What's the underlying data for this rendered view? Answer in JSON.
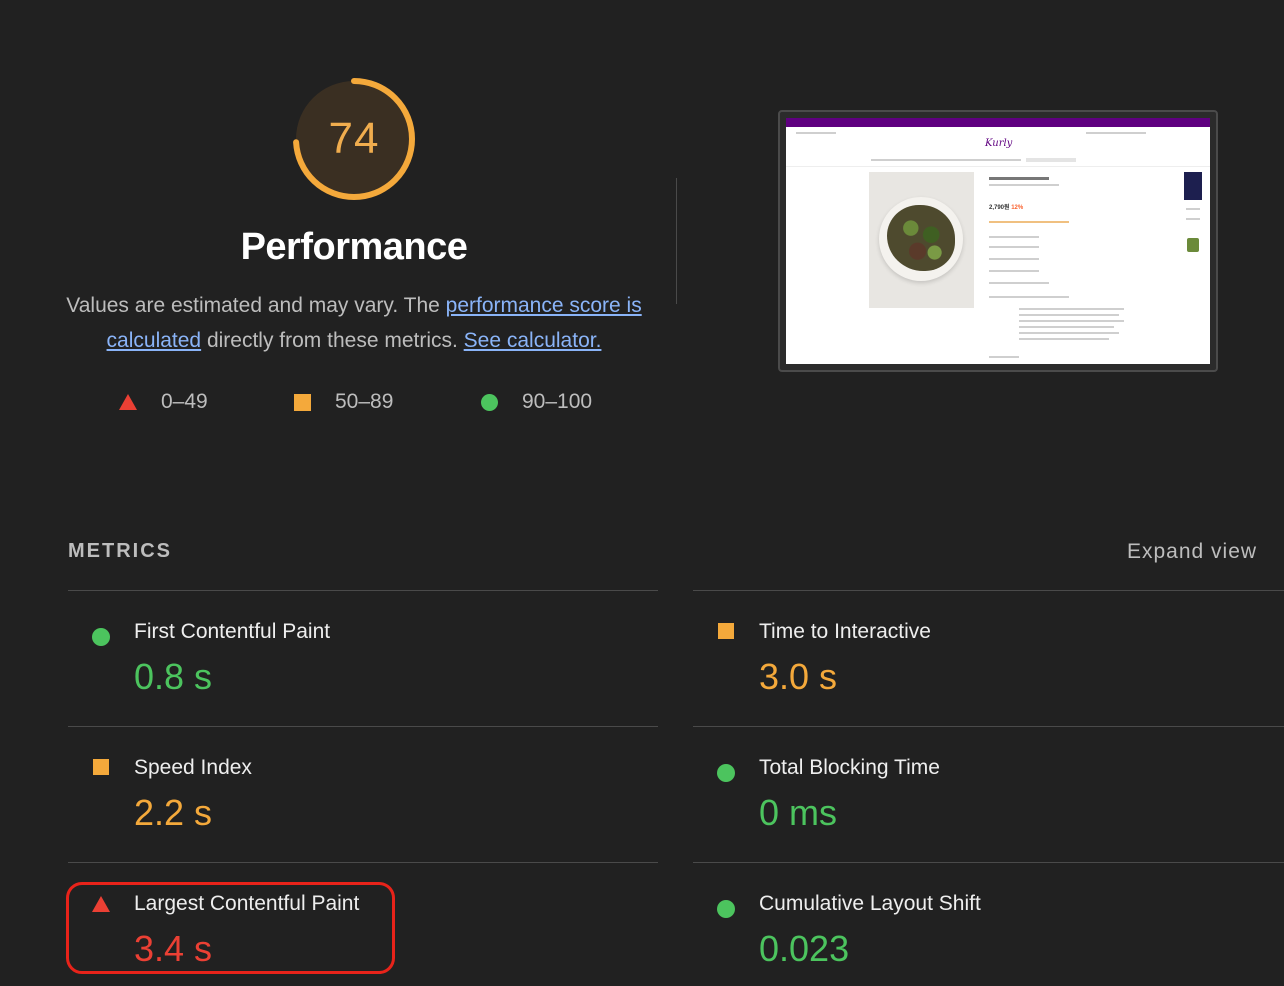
{
  "colors": {
    "background": "#212121",
    "fail": "#eb4034",
    "average": "#f4a93b",
    "pass": "#4cc45e",
    "link": "#8ab4f8",
    "highlight": "#e8231a"
  },
  "gauge": {
    "score": "74",
    "score_fraction": 0.74,
    "title": "Performance",
    "desc_before": "Values are estimated and may vary. The ",
    "desc_link1": "performance score is calculated",
    "desc_middle": " directly from these metrics. ",
    "desc_link2": "See calculator."
  },
  "legend": [
    {
      "icon": "triangle-icon",
      "range": "0–49"
    },
    {
      "icon": "square-icon",
      "range": "50–89"
    },
    {
      "icon": "circle-icon",
      "range": "90–100"
    }
  ],
  "thumbnail": {
    "logo": "Kurly",
    "price": "2,790원",
    "discount": "12%"
  },
  "metrics": {
    "title": "METRICS",
    "expand_label": "Expand view",
    "items": [
      {
        "label": "First Contentful Paint",
        "value": "0.8 s",
        "rating": "pass",
        "icon": "circle-icon"
      },
      {
        "label": "Time to Interactive",
        "value": "3.0 s",
        "rating": "average",
        "icon": "square-icon"
      },
      {
        "label": "Speed Index",
        "value": "2.2 s",
        "rating": "average",
        "icon": "square-icon"
      },
      {
        "label": "Total Blocking Time",
        "value": "0 ms",
        "rating": "pass",
        "icon": "circle-icon"
      },
      {
        "label": "Largest Contentful Paint",
        "value": "3.4 s",
        "rating": "fail",
        "icon": "triangle-icon"
      },
      {
        "label": "Cumulative Layout Shift",
        "value": "0.023",
        "rating": "pass",
        "icon": "circle-icon"
      }
    ]
  }
}
